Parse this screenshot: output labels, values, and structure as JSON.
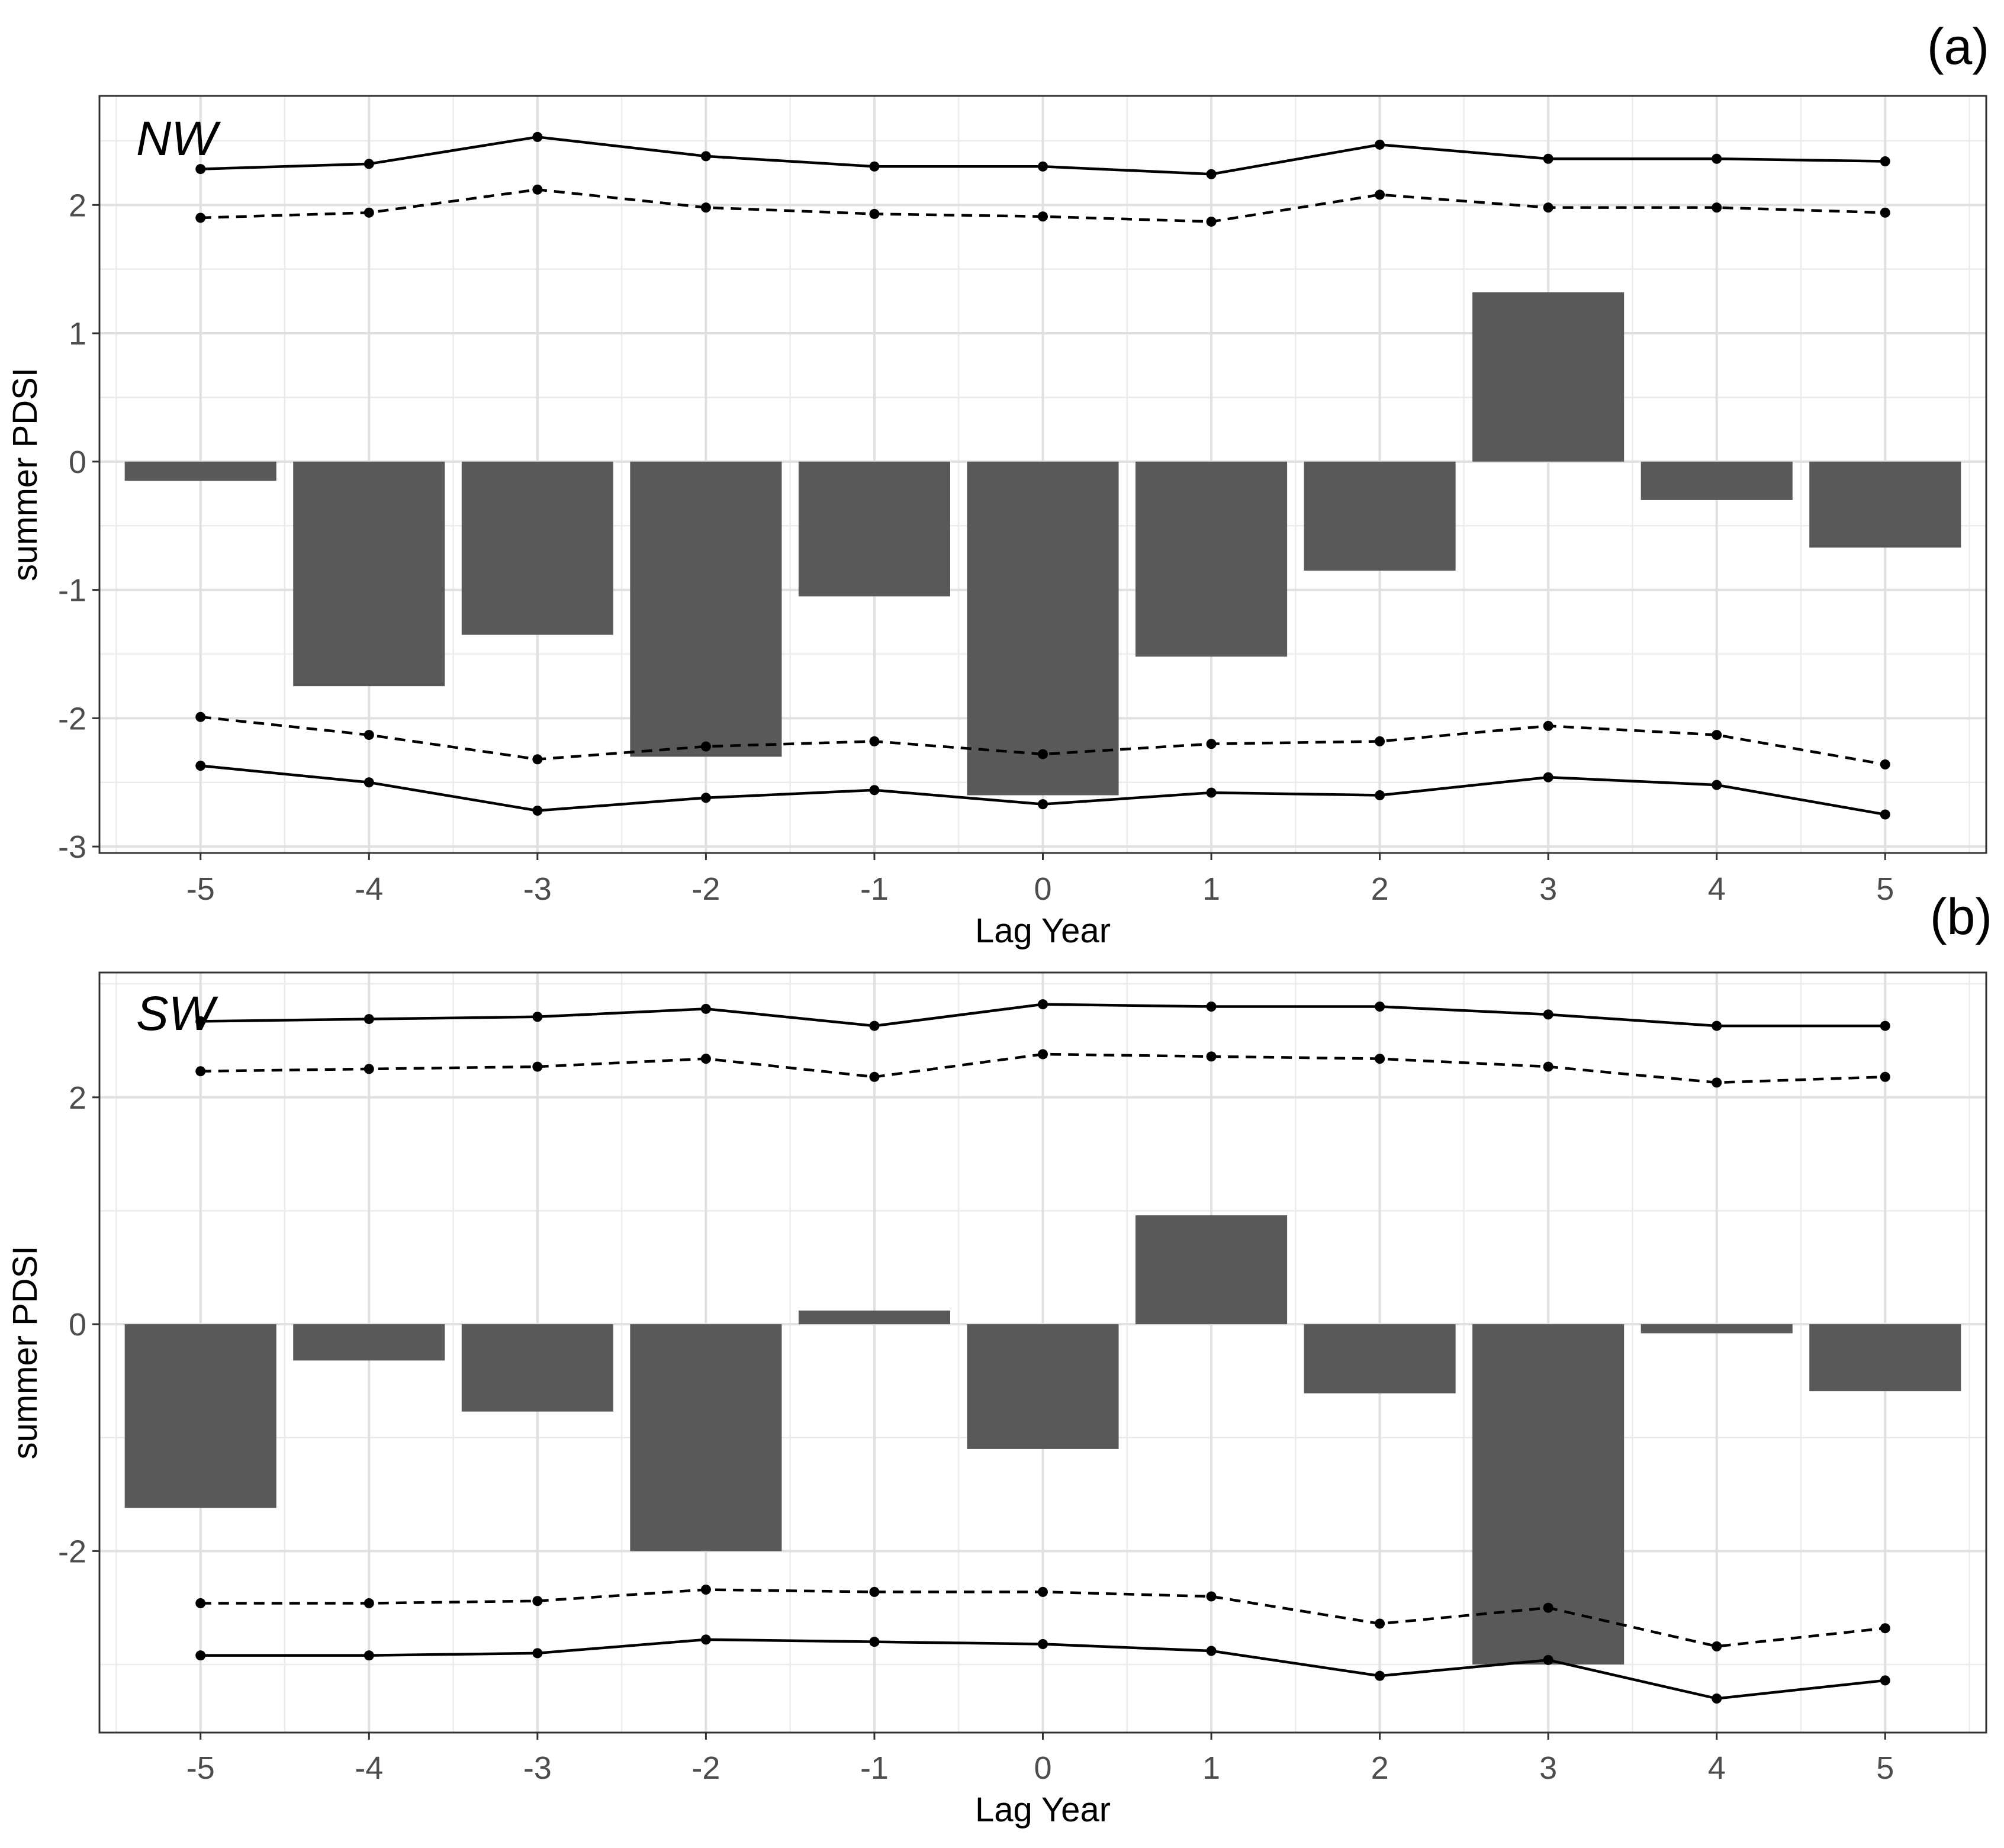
{
  "chart_data": [
    {
      "type": "bar",
      "panel_tag": "(a)",
      "region": "NW",
      "xlabel": "Lag Year",
      "ylabel": "summer PDSI",
      "categories": [
        -5,
        -4,
        -3,
        -2,
        -1,
        0,
        1,
        2,
        3,
        4,
        5
      ],
      "category_labels": [
        "-5",
        "-4",
        "-3",
        "-2",
        "-1",
        "0",
        "1",
        "2",
        "3",
        "4",
        "5"
      ],
      "values": [
        -0.15,
        -1.75,
        -1.35,
        -2.3,
        -1.05,
        -2.6,
        -1.52,
        -0.85,
        1.32,
        -0.3,
        -0.67
      ],
      "ylim": [
        -3.05,
        2.85
      ],
      "yticks": [
        -3,
        -2,
        -1,
        0,
        1,
        2
      ],
      "ytick_labels": [
        "-3",
        "-2",
        "-1",
        "0",
        "1",
        "2"
      ],
      "grid": true,
      "lines": [
        {
          "name": "upper solid",
          "style": "solid",
          "values": [
            2.28,
            2.32,
            2.53,
            2.38,
            2.3,
            2.3,
            2.24,
            2.47,
            2.36,
            2.36,
            2.34
          ]
        },
        {
          "name": "upper dashed",
          "style": "dashed",
          "values": [
            1.9,
            1.94,
            2.12,
            1.98,
            1.93,
            1.91,
            1.87,
            2.08,
            1.98,
            1.98,
            1.94
          ]
        },
        {
          "name": "lower dashed",
          "style": "dashed",
          "values": [
            -1.99,
            -2.13,
            -2.32,
            -2.22,
            -2.18,
            -2.28,
            -2.2,
            -2.18,
            -2.06,
            -2.13,
            -2.36
          ]
        },
        {
          "name": "lower solid",
          "style": "solid",
          "values": [
            -2.37,
            -2.5,
            -2.72,
            -2.62,
            -2.56,
            -2.67,
            -2.58,
            -2.6,
            -2.46,
            -2.52,
            -2.75
          ]
        }
      ]
    },
    {
      "type": "bar",
      "panel_tag": "(b)",
      "region": "SW",
      "xlabel": "Lag Year",
      "ylabel": "summer PDSI",
      "categories": [
        -5,
        -4,
        -3,
        -2,
        -1,
        0,
        1,
        2,
        3,
        4,
        5
      ],
      "category_labels": [
        "-5",
        "-4",
        "-3",
        "-2",
        "-1",
        "0",
        "1",
        "2",
        "3",
        "4",
        "5"
      ],
      "values": [
        -1.62,
        -0.32,
        -0.77,
        -2.0,
        0.12,
        -1.1,
        0.96,
        -0.61,
        -3.0,
        -0.08,
        -0.59
      ],
      "ylim": [
        -3.6,
        3.1
      ],
      "yticks": [
        -2,
        0,
        2
      ],
      "ytick_labels": [
        "-2",
        "0",
        "2"
      ],
      "minor_yticks": [
        -3,
        -1,
        1,
        3
      ],
      "grid": true,
      "lines": [
        {
          "name": "upper solid",
          "style": "solid",
          "values": [
            2.67,
            2.69,
            2.71,
            2.78,
            2.63,
            2.82,
            2.8,
            2.8,
            2.73,
            2.63,
            2.63
          ]
        },
        {
          "name": "upper dashed",
          "style": "dashed",
          "values": [
            2.23,
            2.25,
            2.27,
            2.34,
            2.18,
            2.38,
            2.36,
            2.34,
            2.27,
            2.13,
            2.18
          ]
        },
        {
          "name": "lower dashed",
          "style": "dashed",
          "values": [
            -2.46,
            -2.46,
            -2.44,
            -2.34,
            -2.36,
            -2.36,
            -2.4,
            -2.64,
            -2.5,
            -2.84,
            -2.68
          ]
        },
        {
          "name": "lower solid",
          "style": "solid",
          "values": [
            -2.92,
            -2.92,
            -2.9,
            -2.78,
            -2.8,
            -2.82,
            -2.88,
            -3.1,
            -2.96,
            -3.3,
            -3.14
          ]
        }
      ]
    }
  ]
}
